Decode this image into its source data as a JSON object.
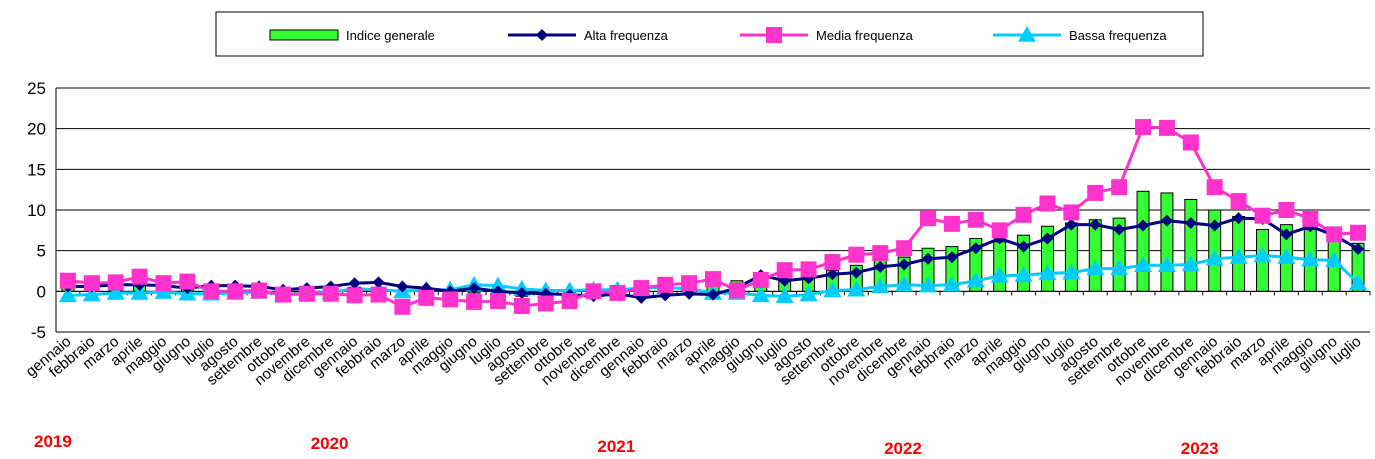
{
  "chart_data": {
    "type": "bar",
    "ylim": [
      -5,
      25
    ],
    "yticks": [
      -5,
      0,
      5,
      10,
      15,
      20,
      25
    ],
    "categories": [
      "gennaio",
      "febbraio",
      "marzo",
      "aprile",
      "maggio",
      "giugno",
      "luglio",
      "agosto",
      "settembre",
      "ottobre",
      "novembre",
      "dicembre",
      "gennaio",
      "febbraio",
      "marzo",
      "aprile",
      "maggio",
      "giugno",
      "luglio",
      "agosto",
      "settembre",
      "ottobre",
      "novembre",
      "dicembre",
      "gennaio",
      "febbraio",
      "marzo",
      "aprile",
      "maggio",
      "giugno",
      "luglio",
      "agosto",
      "settembre",
      "ottobre",
      "novembre",
      "dicembre",
      "gennaio",
      "febbraio",
      "marzo",
      "aprile",
      "maggio",
      "giugno",
      "luglio",
      "agosto",
      "settembre",
      "ottobre",
      "novembre",
      "dicembre",
      "gennaio",
      "febbraio",
      "marzo",
      "aprile",
      "maggio",
      "giugno",
      "luglio"
    ],
    "years": [
      {
        "label": "2019",
        "index": 0
      },
      {
        "label": "2020",
        "index": 12
      },
      {
        "label": "2021",
        "index": 24
      },
      {
        "label": "2022",
        "index": 36
      },
      {
        "label": "2023",
        "index": 48
      }
    ],
    "series": [
      {
        "name": "Indice generale",
        "kind": "bar",
        "color": "#33ff33",
        "values": [
          1.1,
          1.2,
          1.1,
          1.1,
          0.9,
          0.8,
          0.5,
          0.4,
          0.3,
          -0.3,
          -0.2,
          -0.1,
          0.5,
          0.3,
          0.1,
          0.0,
          -0.2,
          -0.2,
          -0.4,
          -0.6,
          -0.6,
          -0.3,
          -0.2,
          -0.2,
          0.4,
          0.6,
          0.8,
          1.1,
          1.3,
          1.3,
          1.9,
          2.1,
          2.6,
          3.2,
          3.8,
          4.2,
          5.3,
          5.5,
          6.5,
          6.1,
          6.9,
          8.0,
          8.4,
          8.8,
          9.0,
          12.3,
          12.1,
          11.3,
          10.0,
          9.2,
          7.6,
          8.2,
          7.6,
          6.4,
          5.9
        ]
      },
      {
        "name": "Alta frequenza",
        "kind": "line",
        "marker": "diamond",
        "color": "#000080",
        "values": [
          0.6,
          0.6,
          0.8,
          0.8,
          0.7,
          0.4,
          0.7,
          0.7,
          0.6,
          0.2,
          0.4,
          0.6,
          1.0,
          1.1,
          0.6,
          0.4,
          0.0,
          0.4,
          0.0,
          -0.2,
          -0.3,
          -0.4,
          -0.6,
          -0.3,
          -0.8,
          -0.5,
          -0.3,
          -0.4,
          0.4,
          2.0,
          1.3,
          1.6,
          2.1,
          2.3,
          3.0,
          3.3,
          4.0,
          4.2,
          5.3,
          6.5,
          5.5,
          6.5,
          8.2,
          8.2,
          7.6,
          8.1,
          8.7,
          8.4,
          8.1,
          9.0,
          8.9,
          7.0,
          8.0,
          6.9,
          5.2
        ]
      },
      {
        "name": "Media frequenza",
        "kind": "line",
        "marker": "square",
        "color": "#ff33cc",
        "values": [
          1.3,
          1.0,
          1.1,
          1.8,
          1.0,
          1.2,
          0.0,
          0.0,
          0.1,
          -0.4,
          -0.3,
          -0.3,
          -0.5,
          -0.4,
          -1.9,
          -0.8,
          -1.0,
          -1.3,
          -1.2,
          -1.8,
          -1.5,
          -1.2,
          0.0,
          -0.2,
          0.4,
          0.8,
          1.0,
          1.5,
          0.1,
          1.4,
          2.6,
          2.7,
          3.6,
          4.5,
          4.7,
          5.3,
          9.0,
          8.3,
          8.8,
          7.5,
          9.4,
          10.8,
          9.7,
          12.1,
          12.8,
          20.2,
          20.1,
          18.3,
          12.8,
          11.1,
          9.3,
          10.0,
          8.9,
          7.0,
          7.2
        ]
      },
      {
        "name": "Bassa frequenza",
        "kind": "line",
        "marker": "triangle",
        "color": "#00ccff",
        "values": [
          -0.5,
          -0.4,
          -0.2,
          -0.2,
          -0.1,
          -0.3,
          -0.3,
          -0.2,
          -0.1,
          -0.4,
          -0.2,
          -0.1,
          0.3,
          0.2,
          0.0,
          0.2,
          0.2,
          0.8,
          0.7,
          0.3,
          0.1,
          0.1,
          0.2,
          0.2,
          0.4,
          0.5,
          0.3,
          -0.2,
          -0.2,
          -0.5,
          -0.6,
          -0.4,
          0.1,
          0.2,
          0.6,
          0.8,
          0.7,
          0.8,
          1.3,
          1.9,
          2.0,
          2.2,
          2.3,
          2.8,
          2.8,
          3.2,
          3.2,
          3.3,
          4.0,
          4.2,
          4.4,
          4.2,
          3.9,
          3.8,
          1.0
        ]
      }
    ]
  }
}
